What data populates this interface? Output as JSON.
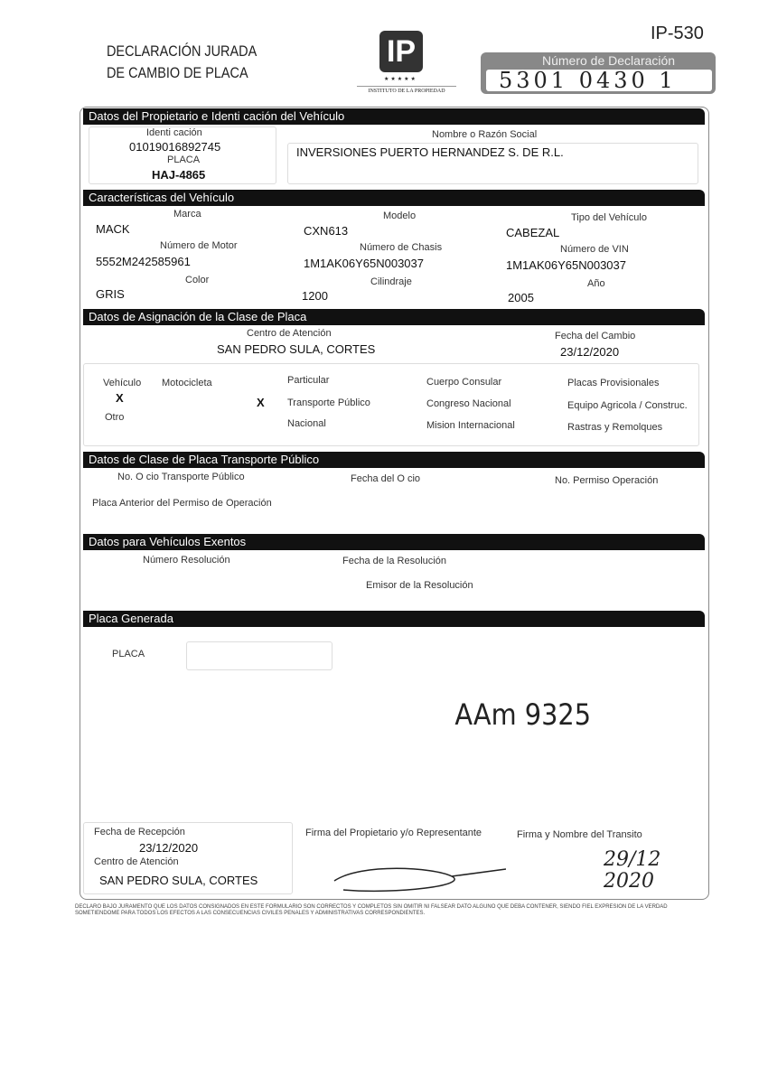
{
  "header": {
    "title_line1": "DECLARACIÓN JURADA",
    "title_line2": "DE CAMBIO DE PLACA",
    "logo_text": "IP",
    "logo_caption": "INSTITUTO DE LA PROPIEDAD",
    "form_code": "IP-530",
    "declaration_label": "Número de Declaración",
    "declaration_number": "5301 0430 1"
  },
  "owner": {
    "section": "Datos del Propietario e Identi  cación del Vehículo",
    "id_label": "Identi  cación",
    "id_value": "01019016892745",
    "name_label": "Nombre o Razón Social",
    "name_value": "INVERSIONES PUERTO HERNANDEZ S. DE R.L.",
    "plate_label": "PLACA",
    "plate_value": "HAJ-4865"
  },
  "vehicle": {
    "section": "Características del Vehículo",
    "brand_label": "Marca",
    "brand": "MACK",
    "model_label": "Modelo",
    "model": "CXN613",
    "type_label": "Tipo del Vehículo",
    "type": "CABEZAL",
    "motor_label": "Número de Motor",
    "motor": "5552M242585961",
    "chassis_label": "Número de Chasis",
    "chassis": "1M1AK06Y65N003037",
    "vin_label": "Número de VIN",
    "vin": "1M1AK06Y65N003037",
    "color_label": "Color",
    "color": "GRIS",
    "cc_label": "Cilindraje",
    "cc": "1200",
    "year_label": "Año",
    "year": "2005"
  },
  "assignment": {
    "section": "Datos de Asignación de la Clase de Placa",
    "center_label": "Centro de Atención",
    "center": "SAN PEDRO SULA, CORTES",
    "date_label": "Fecha del Cambio",
    "date": "23/12/2020",
    "kinds": {
      "vehicle": "Vehículo",
      "vehicle_mark": "X",
      "moto": "Motocicleta",
      "other": "Otro"
    },
    "classes": [
      "Particular",
      "Transporte Público",
      "Nacional",
      "Cuerpo Consular",
      "Congreso Nacional",
      "Mision Internacional",
      "Placas Provisionales",
      "Equipo Agricola / Construc.",
      "Rastras y Remolques"
    ],
    "class_mark": "X"
  },
  "public_transport": {
    "section": "Datos de Clase de Placa Transporte Público",
    "office_label": "No. O  cio Transporte Público",
    "office_date_label": "Fecha del O  cio",
    "permit_label": "No. Permiso Operación",
    "prev_plate_label": "Placa Anterior del Permiso de Operación"
  },
  "exempt": {
    "section": "Datos para Vehículos Exentos",
    "res_label": "Número Resolución",
    "res_date_label": "Fecha de la Resolución",
    "issuer_label": "Emisor de la Resolución"
  },
  "generated": {
    "section": "Placa Generada",
    "plate_label": "PLACA",
    "handwritten": "AAm 9325"
  },
  "footer": {
    "reception_label": "Fecha de Recepción",
    "reception_date": "23/12/2020",
    "center_label": "Centro de Atención",
    "center": "SAN PEDRO SULA, CORTES",
    "owner_sign_label": "Firma del Propietario y/o Representante",
    "transit_sign_label": "Firma y Nombre del Transito",
    "handwritten_date": "29/12 2020"
  },
  "disclaimer": "DECLARO BAJO JURAMENTO QUE LOS DATOS CONSIGNADOS EN ESTE FORMULARIO SON CORRECTOS Y COMPLETOS SIN OMITIR NI FALSEAR DATO ALGUNO QUE DEBA CONTENER, SIENDO FIEL EXPRESION DE LA VERDAD SOMETIENDOME PARA TODOS LOS EFECTOS A LAS CONSECUENCIAS CIVILES PENALES Y ADMINISTRATIVAS CORRESPONDIENTES."
}
